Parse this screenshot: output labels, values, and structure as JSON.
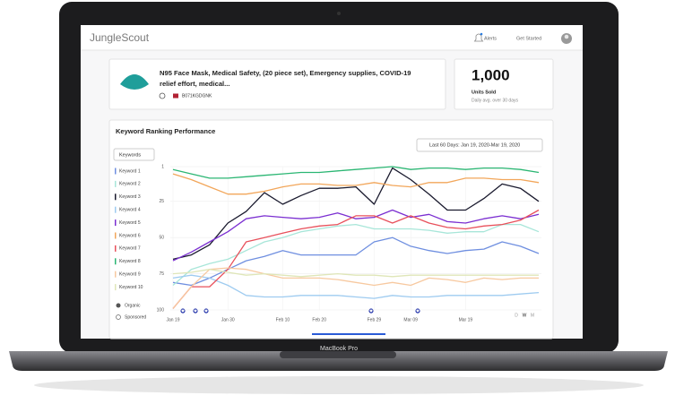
{
  "header": {
    "logo": "JungleScout",
    "alerts": "Alerts",
    "get_started": "Get Started"
  },
  "product": {
    "title_lines": [
      "N95 Face Mask, Medical Safety, (20 piece set), Emergency supplies, COVID-19",
      "relief effort, medical..."
    ],
    "asin": "B071KGDGNK"
  },
  "stats": {
    "value": "1,000",
    "label": "Units Sold",
    "note": "Daily avg. over 30 days"
  },
  "device": {
    "label": "MacBook Pro"
  },
  "chart_data": {
    "type": "line",
    "title": "Keyword Ranking Performance",
    "date_range": "Last 60 Days: Jan 19, 2020-Mar 19, 2020",
    "filter": "Keywords",
    "options": [
      "Organic",
      "Sponsored"
    ],
    "views": [
      "D",
      "W",
      "M"
    ],
    "categories": [
      "Jan 19",
      null,
      null,
      "Jan 30",
      null,
      null,
      "Feb 10",
      null,
      "Feb 20",
      null,
      null,
      "Feb 29",
      null,
      "Mar 09",
      null,
      null,
      "Mar 19",
      null,
      null,
      null,
      null
    ],
    "ylim": [
      1,
      100
    ],
    "yticks": [
      1,
      25,
      50,
      75,
      100
    ],
    "y_inverted": true,
    "grid": true,
    "series": [
      {
        "name": "Keyword 1",
        "color": "#6f8fe0",
        "values": [
          81,
          83,
          78,
          72,
          66,
          63,
          59,
          62,
          62,
          62,
          62,
          53,
          50,
          56,
          59,
          61,
          59,
          58,
          53,
          56,
          61
        ]
      },
      {
        "name": "Keyword 2",
        "color": "#a8e6d9",
        "values": [
          83,
          72,
          68,
          65,
          59,
          53,
          50,
          46,
          44,
          42,
          41,
          44,
          44,
          44,
          45,
          47,
          46,
          46,
          41,
          41,
          46
        ]
      },
      {
        "name": "Keyword 3",
        "color": "#1a1a2e",
        "values": [
          65,
          62,
          55,
          40,
          32,
          19,
          27,
          21,
          16,
          16,
          15,
          27,
          2,
          10,
          20,
          31,
          31,
          23,
          13,
          16,
          25
        ]
      },
      {
        "name": "Keyword 4",
        "color": "#9ecbf0",
        "values": [
          78,
          76,
          78,
          83,
          90,
          91,
          91,
          90,
          90,
          90,
          91,
          92,
          90,
          91,
          91,
          90,
          90,
          90,
          90,
          89,
          88
        ]
      },
      {
        "name": "Keyword 5",
        "color": "#7b2fd1",
        "values": [
          66,
          60,
          53,
          46,
          37,
          35,
          36,
          37,
          36,
          33,
          37,
          36,
          31,
          36,
          34,
          39,
          40,
          37,
          35,
          37,
          34
        ]
      },
      {
        "name": "Keyword 6",
        "color": "#f2a65a",
        "values": [
          6,
          10,
          15,
          20,
          20,
          18,
          15,
          13,
          13,
          14,
          14,
          12,
          14,
          15,
          12,
          12,
          9,
          9,
          10,
          10,
          12
        ]
      },
      {
        "name": "Keyword 7",
        "color": "#e8505b",
        "values": [
          99,
          84,
          84,
          72,
          53,
          50,
          47,
          44,
          42,
          41,
          35,
          35,
          40,
          35,
          40,
          43,
          44,
          42,
          41,
          38,
          31
        ]
      },
      {
        "name": "Keyword 8",
        "color": "#2bb673",
        "values": [
          3,
          6,
          9,
          9,
          8,
          7,
          6,
          5,
          5,
          4,
          3,
          2,
          1,
          3,
          2,
          2,
          3,
          2,
          2,
          3,
          5
        ]
      },
      {
        "name": "Keyword 9",
        "color": "#f7c9a0",
        "values": [
          99,
          84,
          72,
          71,
          72,
          75,
          78,
          78,
          78,
          79,
          81,
          83,
          81,
          83,
          78,
          79,
          81,
          78,
          79,
          78,
          78
        ]
      },
      {
        "name": "Keyword 10",
        "color": "#dfe6b8",
        "values": [
          75,
          74,
          72,
          74,
          76,
          75,
          76,
          77,
          76,
          75,
          76,
          76,
          77,
          76,
          76,
          76,
          76,
          76,
          76,
          76,
          76
        ]
      }
    ]
  }
}
